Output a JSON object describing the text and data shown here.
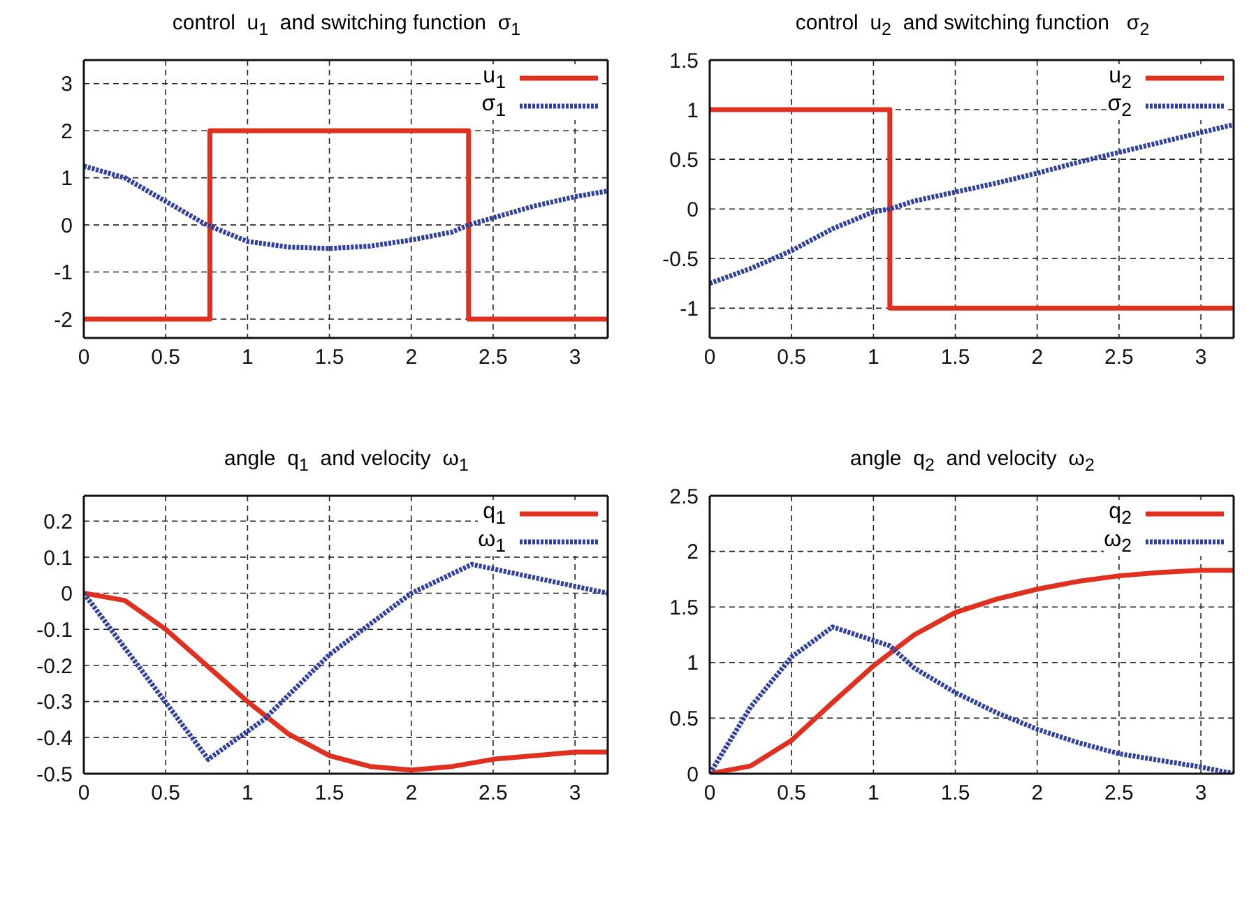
{
  "chart_data": [
    {
      "type": "line",
      "title": "control  u$_{1}$  and switching function  σ$_{1}$",
      "xlim": [
        0,
        3.2
      ],
      "xticks": [
        0,
        0.5,
        1,
        1.5,
        2,
        2.5,
        3
      ],
      "ylim": [
        -2.4,
        3.5
      ],
      "yticks": [
        -2,
        -1,
        0,
        1,
        2,
        3
      ],
      "grid": true,
      "legend": "top right",
      "series": [
        {
          "name": "u$_{1}$",
          "type": "step",
          "color": "#e03020",
          "line_style": "solid",
          "x": [
            0,
            0.77,
            2.35,
            3.2
          ],
          "values": [
            -2,
            2,
            -2,
            -2
          ]
        },
        {
          "name": "σ$_{1}$",
          "color": "#3040a0",
          "line_style": "dotted",
          "x": [
            0,
            0.25,
            0.5,
            0.75,
            1.0,
            1.25,
            1.5,
            1.75,
            2.0,
            2.25,
            2.35,
            2.5,
            2.75,
            3.0,
            3.2
          ],
          "values": [
            1.25,
            1.0,
            0.5,
            0.0,
            -0.35,
            -0.47,
            -0.5,
            -0.45,
            -0.32,
            -0.15,
            0,
            0.15,
            0.4,
            0.6,
            0.72
          ]
        }
      ]
    },
    {
      "type": "line",
      "title": "control  u$_{2}$  and switching function   σ$_{2}$",
      "xlim": [
        0,
        3.2
      ],
      "xticks": [
        0,
        0.5,
        1,
        1.5,
        2,
        2.5,
        3
      ],
      "ylim": [
        -1.3,
        1.5
      ],
      "yticks": [
        -1,
        -0.5,
        0,
        0.5,
        1,
        1.5
      ],
      "grid": true,
      "legend": "top right",
      "series": [
        {
          "name": "u$_{2}$",
          "type": "step",
          "color": "#e03020",
          "line_style": "solid",
          "x": [
            0,
            1.1,
            3.2
          ],
          "values": [
            1,
            -1,
            -1
          ]
        },
        {
          "name": "σ$_{2}$",
          "color": "#3040a0",
          "line_style": "dotted",
          "x": [
            0,
            0.25,
            0.5,
            0.75,
            1.0,
            1.1,
            1.25,
            1.5,
            1.75,
            2.0,
            2.25,
            2.5,
            2.75,
            3.0,
            3.2
          ],
          "values": [
            -0.75,
            -0.6,
            -0.42,
            -0.2,
            -0.03,
            0,
            0.08,
            0.17,
            0.26,
            0.36,
            0.47,
            0.57,
            0.67,
            0.77,
            0.85
          ]
        }
      ]
    },
    {
      "type": "line",
      "title": "angle  q$_{1}$  and velocity  ω$_{1}$",
      "xlim": [
        0,
        3.2
      ],
      "xticks": [
        0,
        0.5,
        1,
        1.5,
        2,
        2.5,
        3
      ],
      "ylim": [
        -0.5,
        0.27
      ],
      "yticks": [
        -0.5,
        -0.4,
        -0.3,
        -0.2,
        -0.1,
        0,
        0.1,
        0.2
      ],
      "grid": true,
      "legend": "top right",
      "series": [
        {
          "name": "q$_{1}$",
          "color": "#e03020",
          "line_style": "solid",
          "x": [
            0,
            0.25,
            0.5,
            0.75,
            1.0,
            1.25,
            1.5,
            1.75,
            2.0,
            2.25,
            2.5,
            2.75,
            3.0,
            3.2
          ],
          "values": [
            0,
            -0.02,
            -0.1,
            -0.2,
            -0.3,
            -0.39,
            -0.45,
            -0.48,
            -0.49,
            -0.48,
            -0.46,
            -0.45,
            -0.44,
            -0.44
          ]
        },
        {
          "name": "ω$_{1}$",
          "color": "#3040a0",
          "line_style": "dotted",
          "x": [
            0,
            0.76,
            1.1,
            1.5,
            2.0,
            2.37,
            3.2
          ],
          "values": [
            0,
            -0.46,
            -0.35,
            -0.17,
            0.0,
            0.08,
            0
          ]
        }
      ]
    },
    {
      "type": "line",
      "title": "angle  q$_{2}$  and velocity  ω$_{2}$",
      "xlim": [
        0,
        3.2
      ],
      "xticks": [
        0,
        0.5,
        1,
        1.5,
        2,
        2.5,
        3
      ],
      "ylim": [
        0,
        2.5
      ],
      "yticks": [
        0,
        0.5,
        1,
        1.5,
        2,
        2.5
      ],
      "grid": true,
      "legend": "top right",
      "series": [
        {
          "name": "q$_{2}$",
          "color": "#e03020",
          "line_style": "solid",
          "x": [
            0,
            0.25,
            0.5,
            0.75,
            1.0,
            1.25,
            1.5,
            1.75,
            2.0,
            2.25,
            2.5,
            2.75,
            3.0,
            3.2
          ],
          "values": [
            0,
            0.07,
            0.3,
            0.64,
            0.97,
            1.25,
            1.45,
            1.57,
            1.66,
            1.73,
            1.78,
            1.81,
            1.83,
            1.83
          ]
        },
        {
          "name": "ω$_{2}$",
          "color": "#3040a0",
          "line_style": "dotted",
          "x": [
            0,
            0.25,
            0.5,
            0.75,
            1.1,
            1.25,
            1.5,
            1.75,
            2.0,
            2.25,
            2.5,
            2.75,
            3.0,
            3.2
          ],
          "values": [
            0,
            0.6,
            1.05,
            1.32,
            1.15,
            0.95,
            0.73,
            0.55,
            0.4,
            0.28,
            0.18,
            0.12,
            0.06,
            0
          ]
        }
      ]
    }
  ]
}
